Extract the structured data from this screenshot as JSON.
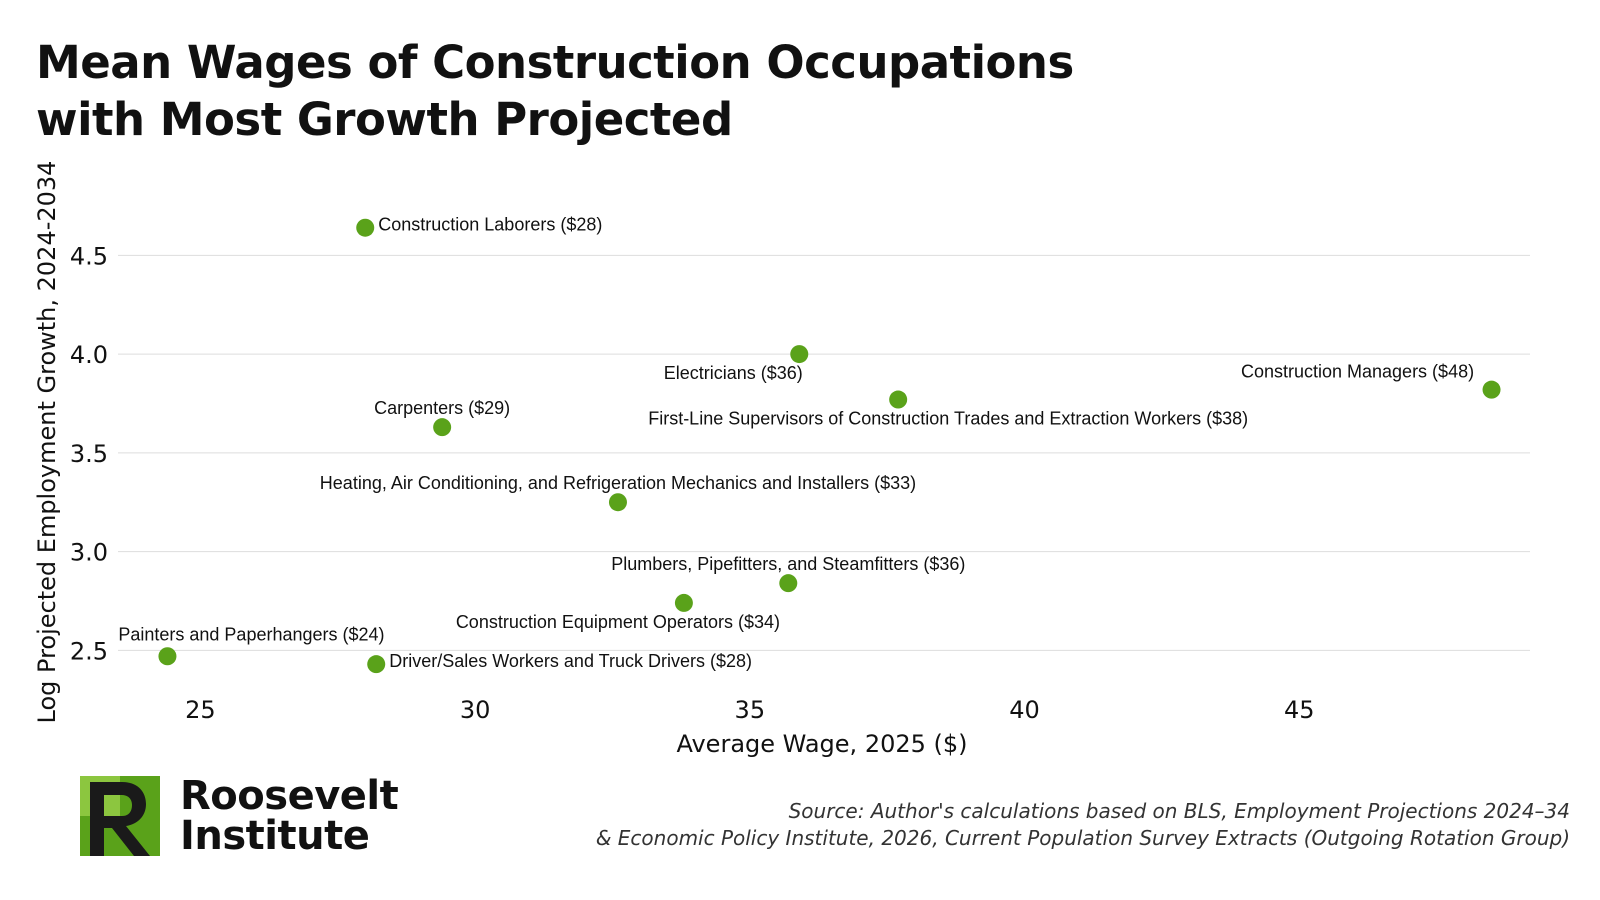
{
  "header": {
    "title_line1": "Mean Wages of Construction Occupations",
    "title_line2": "with Most Growth Projected"
  },
  "colors": {
    "point": "#5aa21a",
    "grid": "#dddddd",
    "logo_green": "#5aa21a",
    "logo_dark": "#1a1a1a"
  },
  "chart_data": {
    "type": "scatter",
    "title": "Mean Wages of Construction Occupations with Most Growth Projected",
    "xlabel": "Average Wage, 2025 ($)",
    "ylabel": "Log Projected Employment Growth, 2024-2034",
    "xlim": [
      23.5,
      49.2
    ],
    "ylim": [
      2.37,
      4.75
    ],
    "xticks": [
      25,
      30,
      35,
      40,
      45
    ],
    "yticks": [
      2.5,
      3.0,
      3.5,
      4.0,
      4.5
    ],
    "xtick_labels": [
      "25",
      "30",
      "35",
      "40",
      "45"
    ],
    "ytick_labels": [
      "2.5",
      "3.0",
      "3.5",
      "4.0",
      "4.5"
    ],
    "grid": "horizontal",
    "points": [
      {
        "label": "Construction Laborers ($28)",
        "x": 28.0,
        "y": 4.64,
        "label_pos": "right"
      },
      {
        "label": "Electricians ($36)",
        "x": 35.9,
        "y": 4.0,
        "label_pos": "below-left"
      },
      {
        "label": "Construction Managers ($48)",
        "x": 48.5,
        "y": 3.82,
        "label_pos": "above-left"
      },
      {
        "label": "First-Line Supervisors of Construction Trades and Extraction Workers ($38)",
        "x": 37.7,
        "y": 3.77,
        "label_pos": "below"
      },
      {
        "label": "Carpenters ($29)",
        "x": 29.4,
        "y": 3.63,
        "label_pos": "above"
      },
      {
        "label": "Heating, Air Conditioning, and Refrigeration Mechanics and Installers ($33)",
        "x": 32.6,
        "y": 3.25,
        "label_pos": "above"
      },
      {
        "label": "Plumbers, Pipefitters, and Steamfitters ($36)",
        "x": 35.7,
        "y": 2.84,
        "label_pos": "above"
      },
      {
        "label": "Construction Equipment Operators ($34)",
        "x": 33.8,
        "y": 2.74,
        "label_pos": "below-left"
      },
      {
        "label": "Painters and Paperhangers ($24)",
        "x": 24.4,
        "y": 2.47,
        "label_pos": "above-right"
      },
      {
        "label": "Driver/Sales Workers and Truck Drivers ($28)",
        "x": 28.2,
        "y": 2.43,
        "label_pos": "right"
      }
    ]
  },
  "logo": {
    "line1": "Roosevelt",
    "line2": "Institute",
    "icon": "roosevelt-r-logo-icon"
  },
  "source": {
    "line1": "Source: Author's calculations based on BLS, Employment Projections 2024–34",
    "line2": "& Economic Policy Institute, 2026, Current Population Survey Extracts (Outgoing Rotation Group)"
  }
}
